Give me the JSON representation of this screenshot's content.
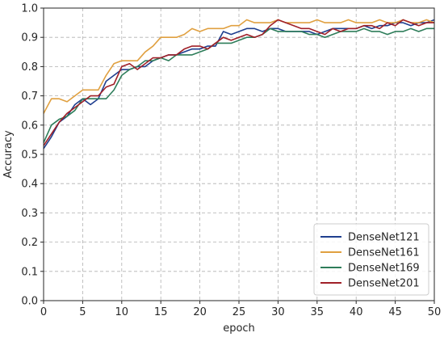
{
  "chart_data": {
    "type": "line",
    "title": "",
    "xlabel": "epoch",
    "ylabel": "Accuracy",
    "xlim": [
      0,
      50
    ],
    "ylim": [
      0.0,
      1.0
    ],
    "xticks": [
      "0",
      "5",
      "10",
      "15",
      "20",
      "25",
      "30",
      "35",
      "40",
      "45",
      "50"
    ],
    "yticks": [
      "0.0",
      "0.1",
      "0.2",
      "0.3",
      "0.4",
      "0.5",
      "0.6",
      "0.7",
      "0.8",
      "0.9",
      "1.0"
    ],
    "grid": true,
    "legend_position": "lower-right",
    "x": [
      0,
      1,
      2,
      3,
      4,
      5,
      6,
      7,
      8,
      9,
      10,
      11,
      12,
      13,
      14,
      15,
      16,
      17,
      18,
      19,
      20,
      21,
      22,
      23,
      24,
      25,
      26,
      27,
      28,
      29,
      30,
      31,
      32,
      33,
      34,
      35,
      36,
      37,
      38,
      39,
      40,
      41,
      42,
      43,
      44,
      45,
      46,
      47,
      48,
      49,
      50
    ],
    "series": [
      {
        "name": "DenseNet121",
        "color": "#1f3f8f",
        "values": [
          0.52,
          0.56,
          0.61,
          0.63,
          0.67,
          0.69,
          0.67,
          0.69,
          0.75,
          0.77,
          0.79,
          0.79,
          0.8,
          0.8,
          0.82,
          0.83,
          0.84,
          0.84,
          0.85,
          0.86,
          0.86,
          0.87,
          0.87,
          0.92,
          0.91,
          0.92,
          0.93,
          0.93,
          0.92,
          0.93,
          0.93,
          0.92,
          0.92,
          0.92,
          0.92,
          0.91,
          0.92,
          0.93,
          0.93,
          0.93,
          0.93,
          0.94,
          0.93,
          0.94,
          0.94,
          0.95,
          0.95,
          0.94,
          0.95,
          0.95,
          0.96
        ]
      },
      {
        "name": "DenseNet161",
        "color": "#e0a040",
        "values": [
          0.64,
          0.69,
          0.69,
          0.68,
          0.7,
          0.72,
          0.72,
          0.72,
          0.77,
          0.81,
          0.82,
          0.82,
          0.82,
          0.85,
          0.87,
          0.9,
          0.9,
          0.9,
          0.91,
          0.93,
          0.92,
          0.93,
          0.93,
          0.93,
          0.94,
          0.94,
          0.96,
          0.95,
          0.95,
          0.95,
          0.96,
          0.95,
          0.95,
          0.95,
          0.95,
          0.96,
          0.95,
          0.95,
          0.95,
          0.96,
          0.95,
          0.95,
          0.95,
          0.96,
          0.95,
          0.95,
          0.96,
          0.95,
          0.95,
          0.96,
          0.95
        ]
      },
      {
        "name": "DenseNet169",
        "color": "#2e7d5a",
        "values": [
          0.54,
          0.6,
          0.62,
          0.63,
          0.65,
          0.69,
          0.69,
          0.69,
          0.69,
          0.72,
          0.77,
          0.79,
          0.8,
          0.82,
          0.82,
          0.83,
          0.82,
          0.84,
          0.84,
          0.84,
          0.85,
          0.86,
          0.88,
          0.88,
          0.88,
          0.89,
          0.9,
          0.9,
          0.91,
          0.93,
          0.92,
          0.92,
          0.92,
          0.92,
          0.91,
          0.91,
          0.9,
          0.91,
          0.92,
          0.92,
          0.92,
          0.93,
          0.92,
          0.92,
          0.91,
          0.92,
          0.92,
          0.93,
          0.92,
          0.93,
          0.93
        ]
      },
      {
        "name": "DenseNet201",
        "color": "#a02028",
        "values": [
          0.53,
          0.57,
          0.61,
          0.64,
          0.66,
          0.68,
          0.7,
          0.7,
          0.73,
          0.74,
          0.8,
          0.81,
          0.79,
          0.81,
          0.83,
          0.83,
          0.84,
          0.84,
          0.86,
          0.87,
          0.87,
          0.86,
          0.88,
          0.9,
          0.89,
          0.9,
          0.91,
          0.9,
          0.91,
          0.94,
          0.96,
          0.95,
          0.94,
          0.93,
          0.93,
          0.92,
          0.91,
          0.93,
          0.92,
          0.93,
          0.93,
          0.94,
          0.94,
          0.93,
          0.95,
          0.94,
          0.96,
          0.95,
          0.94,
          0.95,
          0.95
        ]
      }
    ]
  }
}
